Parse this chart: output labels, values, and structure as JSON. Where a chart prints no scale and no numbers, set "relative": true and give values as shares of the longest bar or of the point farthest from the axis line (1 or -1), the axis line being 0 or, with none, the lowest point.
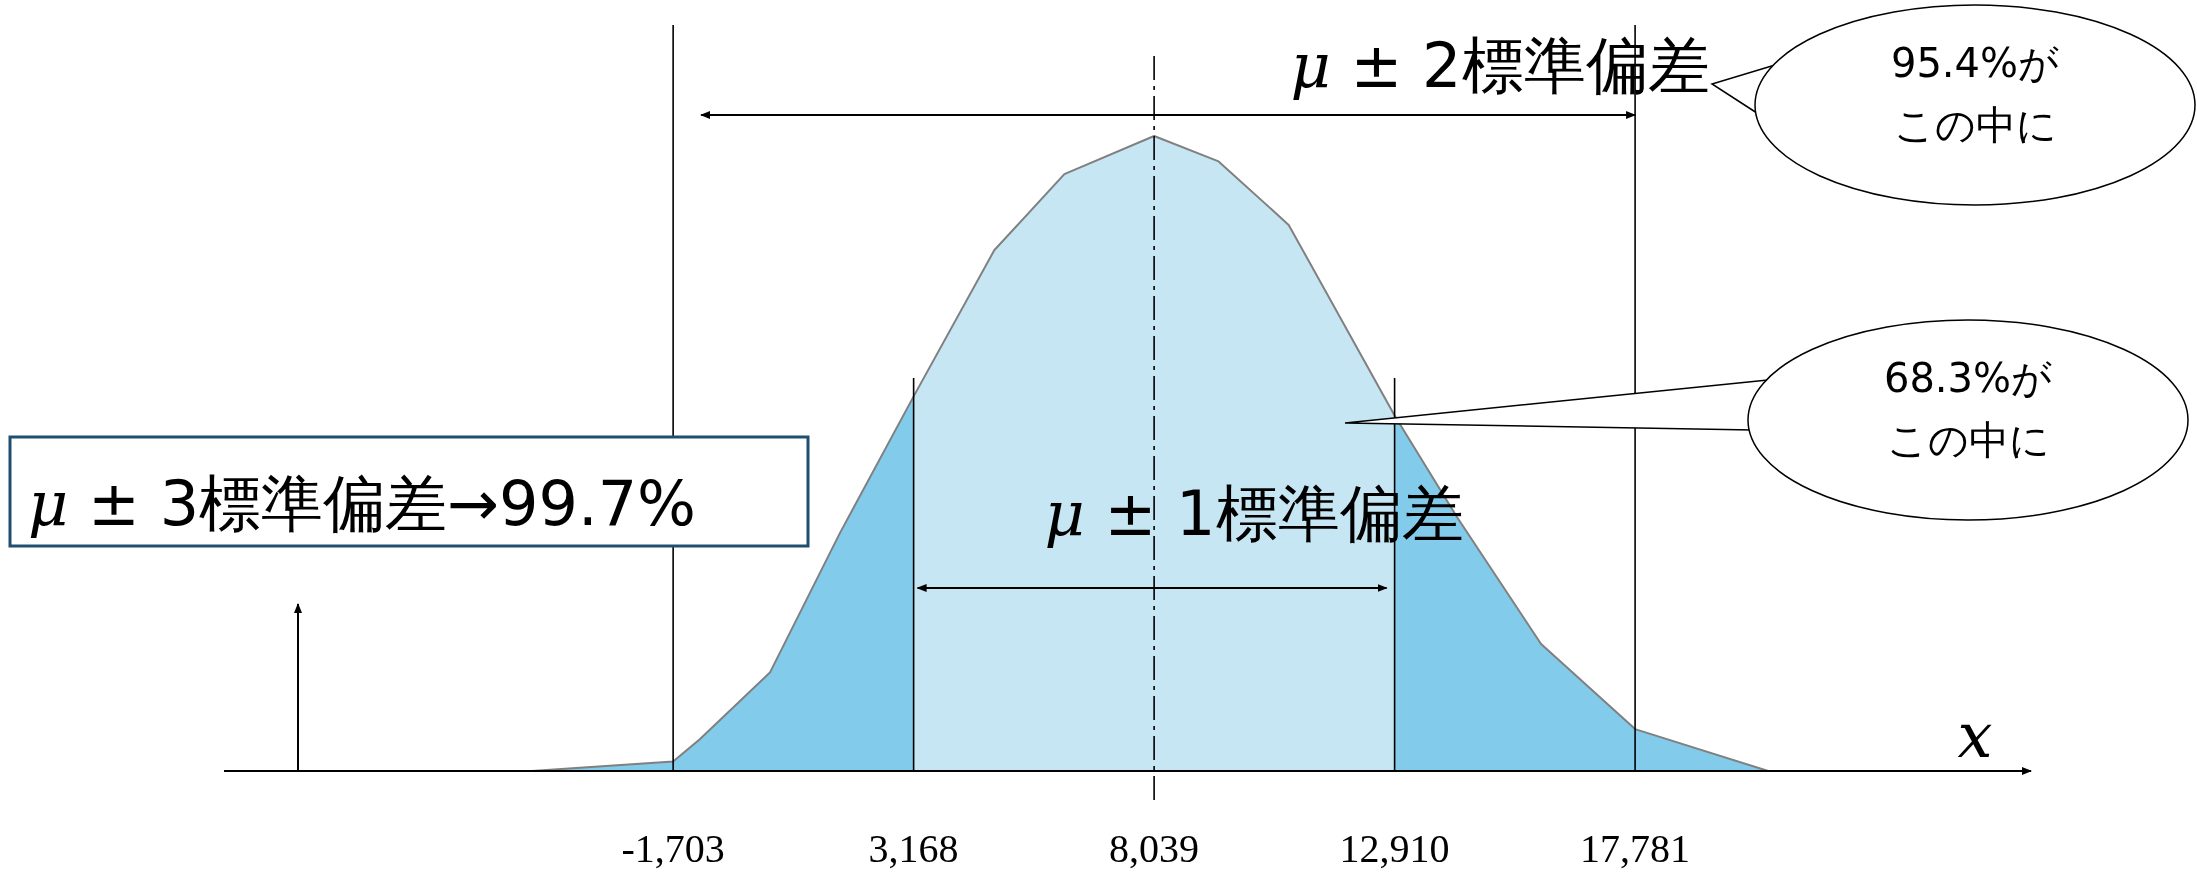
{
  "chart_data": {
    "type": "area",
    "relative": true,
    "color": "#82cbea",
    "xlabel": "x",
    "x": [
      -4570,
      -1703,
      -1163,
      257,
      1677,
      3168,
      4801,
      6221,
      8039,
      9345,
      10765,
      12910,
      14173,
      15877,
      17781,
      20478
    ],
    "values": [
      0,
      0.015,
      0.05,
      0.155,
      0.375,
      0.59,
      0.82,
      0.94,
      1,
      0.96,
      0.86,
      0.56,
      0.4,
      0.2,
      0.066,
      0
    ],
    "xlim": [
      -10800,
      25800
    ],
    "xticks": [
      {
        "value": -1703,
        "label": "-1,703"
      },
      {
        "value": 3168,
        "label": "3,168"
      },
      {
        "value": 8039,
        "label": "8,039"
      },
      {
        "value": 12910,
        "label": "12,910"
      },
      {
        "value": 17781,
        "label": "17,781"
      }
    ],
    "bands": [
      {
        "axis": "x",
        "from": 3168,
        "to": 12910,
        "color": "#c7e6f3"
      }
    ],
    "ref_lines": [
      {
        "axis": "x",
        "value": -1703
      },
      {
        "axis": "x",
        "value": 3168
      },
      {
        "axis": "x",
        "value": 8039,
        "line_style": "dashed"
      },
      {
        "axis": "x",
        "value": 12910
      },
      {
        "axis": "x",
        "value": 17781
      }
    ],
    "annotations": [
      "*μ* ± 2標準偏差",
      "95.4%がこの中に",
      "68.3%がこの中に",
      "*μ* ± 1標準偏差",
      "*μ* ± 3標準偏差→99.7%"
    ]
  }
}
